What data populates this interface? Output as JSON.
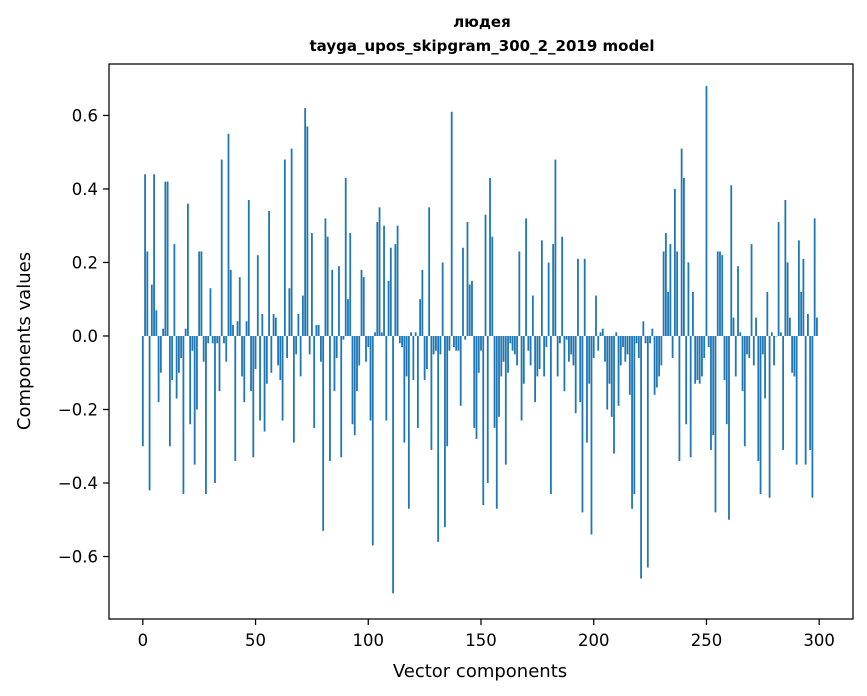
{
  "chart_data": {
    "type": "bar",
    "title_line1": "людея",
    "title_line2": "tayga_upos_skipgram_300_2_2019 model",
    "xlabel": "Vector components",
    "ylabel": "Components values",
    "xlim": [
      -15,
      315
    ],
    "ylim": [
      -0.77,
      0.74
    ],
    "xticks": [
      0,
      50,
      100,
      150,
      200,
      250,
      300
    ],
    "xtick_labels": [
      "0",
      "50",
      "100",
      "150",
      "200",
      "250",
      "300"
    ],
    "yticks": [
      -0.6,
      -0.4,
      -0.2,
      0.0,
      0.2,
      0.4,
      0.6
    ],
    "ytick_labels": [
      "−0.6",
      "−0.4",
      "−0.2",
      "0.0",
      "0.2",
      "0.4",
      "0.6"
    ],
    "bar_color": "#1f77b4",
    "values": [
      -0.3,
      0.44,
      0.23,
      -0.42,
      0.14,
      0.44,
      0.07,
      -0.18,
      -0.1,
      0.02,
      0.42,
      0.42,
      -0.3,
      -0.12,
      0.25,
      -0.17,
      -0.1,
      -0.06,
      -0.43,
      0.02,
      0.36,
      -0.24,
      -0.04,
      -0.35,
      -0.2,
      0.23,
      0.23,
      -0.07,
      -0.43,
      -0.02,
      0.13,
      -0.02,
      -0.4,
      -0.02,
      -0.15,
      0.48,
      -0.02,
      -0.07,
      0.55,
      0.18,
      0.03,
      -0.34,
      0.04,
      0.16,
      -0.11,
      -0.18,
      0.04,
      0.37,
      -0.15,
      -0.33,
      -0.09,
      0.22,
      -0.23,
      0.06,
      -0.26,
      -0.13,
      0.34,
      -0.1,
      0.06,
      0.05,
      -0.08,
      -0.12,
      -0.23,
      0.48,
      -0.06,
      0.13,
      0.51,
      -0.29,
      -0.05,
      0.06,
      -0.11,
      0.11,
      0.62,
      0.57,
      -0.05,
      0.28,
      -0.25,
      0.03,
      0.03,
      -0.07,
      -0.53,
      0.32,
      0.27,
      -0.34,
      0.18,
      -0.15,
      -0.06,
      0.19,
      -0.33,
      -0.01,
      0.43,
      0.1,
      0.28,
      -0.24,
      -0.27,
      -0.15,
      -0.08,
      0.18,
      0.16,
      -0.07,
      -0.03,
      -0.23,
      -0.57,
      0.01,
      0.31,
      0.35,
      0.01,
      0.3,
      -0.23,
      0.15,
      0.24,
      -0.7,
      0.25,
      0.3,
      -0.02,
      -0.03,
      -0.29,
      -0.11,
      -0.47,
      0.01,
      -0.12,
      0.01,
      -0.25,
      0.1,
      0.18,
      -0.12,
      -0.09,
      0.35,
      -0.31,
      -0.05,
      -0.04,
      -0.56,
      -0.05,
      0.2,
      -0.52,
      -0.3,
      -0.04,
      0.61,
      -0.03,
      -0.04,
      -0.04,
      -0.19,
      0.24,
      -0.01,
      0.31,
      0.14,
      0.15,
      -0.25,
      -0.28,
      -0.1,
      -0.04,
      -0.46,
      0.33,
      -0.4,
      0.43,
      0.27,
      -0.25,
      -0.47,
      -0.22,
      -0.11,
      -0.07,
      -0.35,
      -0.1,
      -0.02,
      -0.04,
      -0.05,
      -0.08,
      0.23,
      -0.23,
      -0.13,
      0.32,
      -0.04,
      -0.08,
      0.11,
      -0.18,
      -0.11,
      -0.09,
      0.26,
      -0.11,
      -0.03,
      0.2,
      -0.43,
      0.25,
      0.48,
      -0.11,
      -0.02,
      0.27,
      -0.15,
      -0.01,
      -0.07,
      -0.05,
      -0.08,
      -0.21,
      0.21,
      -0.18,
      -0.48,
      0.21,
      -0.29,
      -0.13,
      -0.54,
      -0.06,
      0.11,
      -0.04,
      0.01,
      0.02,
      -0.07,
      -0.2,
      -0.13,
      -0.22,
      -0.32,
      0.01,
      -0.19,
      -0.08,
      -0.03,
      -0.07,
      -0.05,
      -0.16,
      -0.47,
      -0.43,
      -0.02,
      -0.06,
      -0.66,
      0.04,
      -0.02,
      -0.63,
      -0.02,
      0.02,
      -0.16,
      -0.14,
      -0.11,
      -0.08,
      0.23,
      0.28,
      0.12,
      0.25,
      -0.06,
      0.4,
      0.23,
      -0.34,
      0.51,
      0.43,
      -0.24,
      0.2,
      -0.33,
      0.12,
      -0.13,
      -0.12,
      -0.13,
      -0.11,
      -0.06,
      0.68,
      -0.03,
      -0.31,
      -0.27,
      -0.48,
      0.23,
      0.23,
      0.22,
      -0.12,
      -0.24,
      -0.5,
      0.41,
      0.05,
      -0.11,
      0.19,
      0.01,
      -0.15,
      -0.3,
      -0.05,
      -0.06,
      0.25,
      -0.08,
      0.05,
      -0.34,
      -0.43,
      -0.05,
      -0.17,
      0.12,
      -0.44,
      0.01,
      -0.08,
      0.0,
      0.31,
      0.01,
      -0.31,
      0.37,
      0.2,
      0.05,
      -0.1,
      -0.11,
      -0.35,
      0.26,
      0.12,
      0.21,
      -0.35,
      0.06,
      -0.31,
      -0.44,
      0.32,
      0.05
    ]
  }
}
